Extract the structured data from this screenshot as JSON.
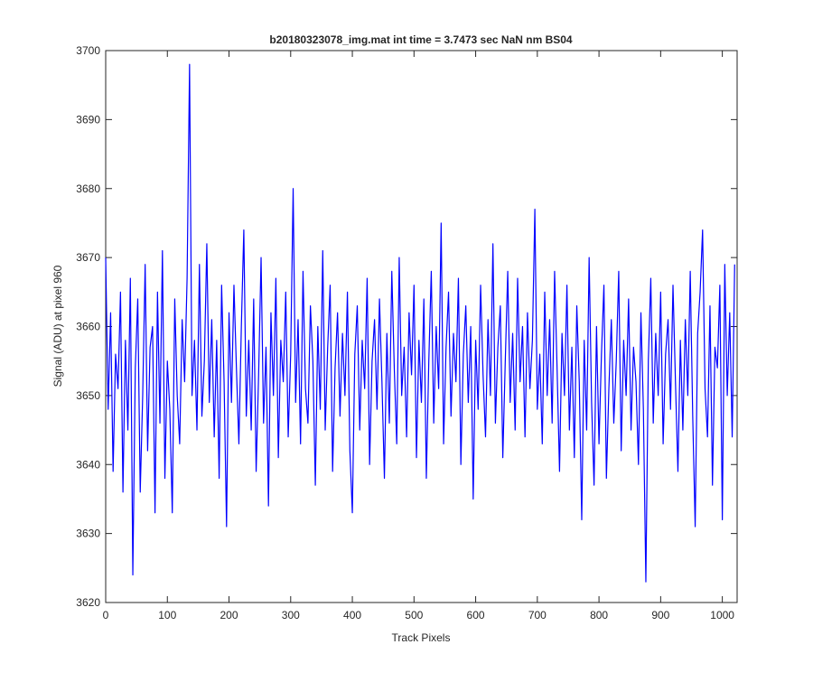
{
  "chart_data": {
    "type": "line",
    "title": "b20180323078_img.mat int time = 3.7473 sec  NaN nm BS04",
    "xlabel": "Track Pixels",
    "ylabel": "Signal (ADU) at pixel 960",
    "x": [
      0,
      4,
      8,
      12,
      16,
      20,
      24,
      28,
      32,
      36,
      40,
      44,
      48,
      52,
      56,
      60,
      64,
      68,
      72,
      76,
      80,
      84,
      88,
      92,
      96,
      100,
      104,
      108,
      112,
      116,
      120,
      124,
      128,
      132,
      136,
      140,
      144,
      148,
      152,
      156,
      160,
      164,
      168,
      172,
      176,
      180,
      184,
      188,
      192,
      196,
      200,
      204,
      208,
      212,
      216,
      220,
      224,
      228,
      232,
      236,
      240,
      244,
      248,
      252,
      256,
      260,
      264,
      268,
      272,
      276,
      280,
      284,
      288,
      292,
      296,
      300,
      304,
      308,
      312,
      316,
      320,
      324,
      328,
      332,
      336,
      340,
      344,
      348,
      352,
      356,
      360,
      364,
      368,
      372,
      376,
      380,
      384,
      388,
      392,
      396,
      400,
      404,
      408,
      412,
      416,
      420,
      424,
      428,
      432,
      436,
      440,
      444,
      448,
      452,
      456,
      460,
      464,
      468,
      472,
      476,
      480,
      484,
      488,
      492,
      496,
      500,
      504,
      508,
      512,
      516,
      520,
      524,
      528,
      532,
      536,
      540,
      544,
      548,
      552,
      556,
      560,
      564,
      568,
      572,
      576,
      580,
      584,
      588,
      592,
      596,
      600,
      604,
      608,
      612,
      616,
      620,
      624,
      628,
      632,
      636,
      640,
      644,
      648,
      652,
      656,
      660,
      664,
      668,
      672,
      676,
      680,
      684,
      688,
      692,
      696,
      700,
      704,
      708,
      712,
      716,
      720,
      724,
      728,
      732,
      736,
      740,
      744,
      748,
      752,
      756,
      760,
      764,
      768,
      772,
      776,
      780,
      784,
      788,
      792,
      796,
      800,
      804,
      808,
      812,
      816,
      820,
      824,
      828,
      832,
      836,
      840,
      844,
      848,
      852,
      856,
      860,
      864,
      868,
      872,
      876,
      880,
      884,
      888,
      892,
      896,
      900,
      904,
      908,
      912,
      916,
      920,
      924,
      928,
      932,
      936,
      940,
      944,
      948,
      952,
      956,
      960,
      964,
      968,
      972,
      976,
      980,
      984,
      988,
      992,
      996,
      1000,
      1004,
      1008,
      1012,
      1016,
      1020
    ],
    "series": [
      {
        "color": "#0000ff",
        "values": [
          3670,
          3648,
          3662,
          3639,
          3656,
          3651,
          3665,
          3636,
          3658,
          3645,
          3667,
          3624,
          3654,
          3664,
          3636,
          3650,
          3669,
          3642,
          3657,
          3660,
          3633,
          3665,
          3646,
          3671,
          3638,
          3655,
          3648,
          3633,
          3664,
          3650,
          3643,
          3661,
          3652,
          3667,
          3698,
          3650,
          3658,
          3645,
          3669,
          3647,
          3655,
          3672,
          3649,
          3661,
          3644,
          3658,
          3638,
          3666,
          3652,
          3631,
          3662,
          3649,
          3666,
          3654,
          3643,
          3660,
          3674,
          3647,
          3658,
          3645,
          3664,
          3639,
          3653,
          3670,
          3646,
          3657,
          3634,
          3662,
          3650,
          3667,
          3641,
          3658,
          3652,
          3665,
          3644,
          3656,
          3680,
          3649,
          3661,
          3643,
          3668,
          3651,
          3646,
          3663,
          3655,
          3637,
          3660,
          3648,
          3671,
          3645,
          3657,
          3666,
          3639,
          3654,
          3662,
          3647,
          3659,
          3650,
          3665,
          3642,
          3633,
          3656,
          3663,
          3645,
          3658,
          3651,
          3667,
          3640,
          3655,
          3661,
          3648,
          3664,
          3652,
          3638,
          3659,
          3646,
          3668,
          3654,
          3643,
          3670,
          3650,
          3657,
          3644,
          3662,
          3653,
          3666,
          3641,
          3658,
          3649,
          3664,
          3638,
          3655,
          3668,
          3646,
          3660,
          3651,
          3675,
          3643,
          3657,
          3665,
          3647,
          3659,
          3652,
          3667,
          3640,
          3656,
          3663,
          3649,
          3660,
          3635,
          3658,
          3648,
          3666,
          3653,
          3644,
          3661,
          3650,
          3672,
          3646,
          3657,
          3663,
          3641,
          3655,
          3668,
          3649,
          3659,
          3645,
          3667,
          3652,
          3660,
          3644,
          3662,
          3651,
          3658,
          3677,
          3648,
          3656,
          3643,
          3665,
          3650,
          3661,
          3646,
          3668,
          3654,
          3639,
          3659,
          3650,
          3666,
          3645,
          3657,
          3641,
          3663,
          3652,
          3632,
          3658,
          3645,
          3670,
          3649,
          3637,
          3660,
          3643,
          3656,
          3666,
          3638,
          3651,
          3661,
          3646,
          3655,
          3668,
          3642,
          3658,
          3650,
          3664,
          3645,
          3657,
          3652,
          3640,
          3662,
          3648,
          3623,
          3655,
          3667,
          3646,
          3659,
          3650,
          3665,
          3643,
          3656,
          3661,
          3648,
          3666,
          3652,
          3639,
          3658,
          3645,
          3661,
          3650,
          3668,
          3647,
          3631,
          3659,
          3665,
          3674,
          3651,
          3644,
          3663,
          3637,
          3657,
          3654,
          3666,
          3632,
          3669,
          3650,
          3662,
          3644,
          3669
        ]
      }
    ],
    "xlim": [
      0,
      1024
    ],
    "xticks": [
      0,
      100,
      200,
      300,
      400,
      500,
      600,
      700,
      800,
      900,
      1000
    ],
    "ylim": [
      3620,
      3700
    ],
    "yticks": [
      3620,
      3630,
      3640,
      3650,
      3660,
      3670,
      3680,
      3690,
      3700
    ]
  }
}
